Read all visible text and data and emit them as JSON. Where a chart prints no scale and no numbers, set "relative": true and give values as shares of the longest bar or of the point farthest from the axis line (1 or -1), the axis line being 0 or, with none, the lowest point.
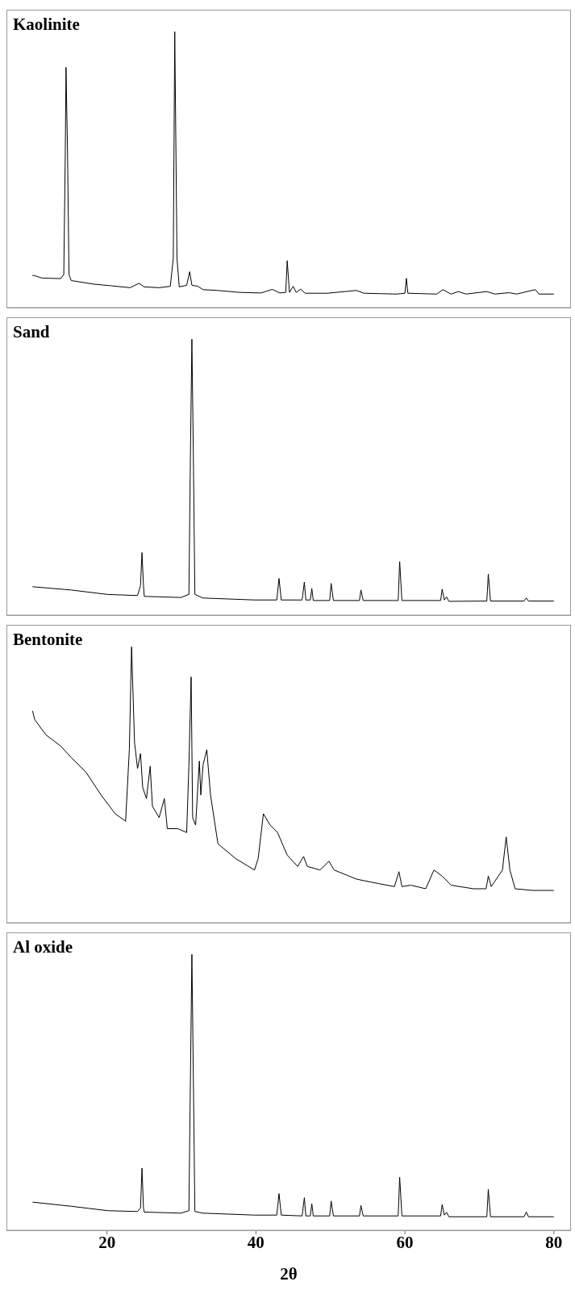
{
  "chart_data": [
    {
      "type": "line",
      "title": "Kaolinite",
      "relative": true,
      "xlim": [
        6.5,
        82.3
      ],
      "xticks": [
        20,
        40,
        60,
        80
      ],
      "tick_labels": false,
      "color": "#000000",
      "x": [
        10.0,
        10.1,
        11.3,
        13.8,
        14.2,
        14.4,
        14.5,
        14.7,
        14.9,
        15.2,
        18.2,
        20.6,
        23.1,
        24.3,
        25.0,
        27.0,
        28.5,
        28.9,
        29.1,
        29.4,
        29.7,
        30.7,
        31.1,
        31.4,
        32.2,
        32.9,
        34.9,
        37.8,
        40.7,
        42.2,
        43.2,
        44.0,
        44.2,
        44.5,
        45.0,
        45.4,
        46.0,
        46.6,
        49.6,
        53.5,
        54.5,
        58.9,
        60.0,
        60.2,
        60.4,
        64.3,
        65.1,
        66.2,
        67.2,
        68.2,
        71.0,
        72.1,
        74.0,
        75.0,
        77.5,
        78.0,
        80.0
      ],
      "values": [
        0.114,
        0.117,
        0.107,
        0.105,
        0.12,
        0.565,
        0.871,
        0.565,
        0.12,
        0.098,
        0.085,
        0.079,
        0.072,
        0.088,
        0.075,
        0.072,
        0.077,
        0.178,
        1.0,
        0.178,
        0.075,
        0.081,
        0.13,
        0.081,
        0.077,
        0.065,
        0.062,
        0.055,
        0.053,
        0.066,
        0.053,
        0.055,
        0.17,
        0.055,
        0.077,
        0.055,
        0.067,
        0.052,
        0.052,
        0.062,
        0.052,
        0.049,
        0.052,
        0.106,
        0.052,
        0.049,
        0.065,
        0.049,
        0.058,
        0.049,
        0.058,
        0.049,
        0.054,
        0.049,
        0.065,
        0.049,
        0.049
      ]
    },
    {
      "type": "line",
      "title": "Sand",
      "relative": true,
      "xlim": [
        6.5,
        82.3
      ],
      "xticks": [
        20,
        40,
        60,
        80
      ],
      "tick_labels": false,
      "color": "#000000",
      "x": [
        10.0,
        15.2,
        20.1,
        24.1,
        24.5,
        24.7,
        24.9,
        25.0,
        29.9,
        31.0,
        31.2,
        31.4,
        31.6,
        31.8,
        32.9,
        39.8,
        42.8,
        43.1,
        43.4,
        46.2,
        46.5,
        46.7,
        47.3,
        47.5,
        47.7,
        49.9,
        50.1,
        50.4,
        53.9,
        54.1,
        54.4,
        59.1,
        59.3,
        59.6,
        64.8,
        65.0,
        65.3,
        65.6,
        65.9,
        71.0,
        71.2,
        71.5,
        76.0,
        76.3,
        76.6,
        80.0
      ],
      "values": [
        0.103,
        0.091,
        0.075,
        0.071,
        0.107,
        0.227,
        0.107,
        0.068,
        0.064,
        0.075,
        0.57,
        1.0,
        0.57,
        0.075,
        0.062,
        0.055,
        0.055,
        0.133,
        0.055,
        0.055,
        0.12,
        0.055,
        0.055,
        0.097,
        0.053,
        0.053,
        0.115,
        0.053,
        0.053,
        0.091,
        0.053,
        0.053,
        0.194,
        0.053,
        0.053,
        0.094,
        0.055,
        0.066,
        0.05,
        0.051,
        0.149,
        0.051,
        0.051,
        0.062,
        0.051,
        0.051
      ]
    },
    {
      "type": "line",
      "title": "Bentonite",
      "relative": true,
      "xlim": [
        6.5,
        82.3
      ],
      "xticks": [
        20,
        40,
        60,
        80
      ],
      "tick_labels": false,
      "color": "#000000",
      "x": [
        10.0,
        10.3,
        11.8,
        13.8,
        15.2,
        17.2,
        19.2,
        21.1,
        22.5,
        23.0,
        23.3,
        23.7,
        24.1,
        24.5,
        24.8,
        25.3,
        25.8,
        26.1,
        27.0,
        27.7,
        28.1,
        29.5,
        30.7,
        31.0,
        31.3,
        31.5,
        31.9,
        32.4,
        32.6,
        32.9,
        33.4,
        33.9,
        34.9,
        37.3,
        39.8,
        40.3,
        41.0,
        41.9,
        42.9,
        44.2,
        45.6,
        46.4,
        46.9,
        48.6,
        49.8,
        50.5,
        53.5,
        56.4,
        58.6,
        59.2,
        59.6,
        60.8,
        62.8,
        63.9,
        65.0,
        66.2,
        69.2,
        70.9,
        71.2,
        71.6,
        73.1,
        73.6,
        74.1,
        74.8,
        77.1,
        80.0
      ],
      "values": [
        0.768,
        0.736,
        0.681,
        0.64,
        0.599,
        0.545,
        0.463,
        0.395,
        0.368,
        0.627,
        1.0,
        0.654,
        0.559,
        0.613,
        0.49,
        0.45,
        0.567,
        0.422,
        0.381,
        0.45,
        0.341,
        0.341,
        0.327,
        0.572,
        0.891,
        0.381,
        0.354,
        0.586,
        0.463,
        0.572,
        0.627,
        0.463,
        0.286,
        0.232,
        0.191,
        0.232,
        0.395,
        0.354,
        0.327,
        0.245,
        0.204,
        0.24,
        0.204,
        0.191,
        0.223,
        0.191,
        0.158,
        0.142,
        0.131,
        0.185,
        0.131,
        0.136,
        0.123,
        0.191,
        0.169,
        0.136,
        0.123,
        0.123,
        0.169,
        0.131,
        0.191,
        0.311,
        0.191,
        0.123,
        0.117,
        0.117
      ]
    },
    {
      "type": "line",
      "title": "Al oxide",
      "xlabel": "2θ",
      "relative": true,
      "xlim": [
        6.5,
        82.3
      ],
      "xticks": [
        20,
        40,
        60,
        80
      ],
      "tick_labels": "x",
      "color": "#000000",
      "x": [
        10.0,
        15.2,
        20.1,
        24.1,
        24.5,
        24.7,
        24.9,
        25.0,
        29.9,
        31.0,
        31.2,
        31.4,
        31.6,
        31.8,
        32.9,
        39.8,
        42.8,
        43.1,
        43.4,
        46.2,
        46.5,
        46.7,
        47.3,
        47.5,
        47.7,
        49.9,
        50.1,
        50.4,
        53.9,
        54.1,
        54.4,
        59.1,
        59.3,
        59.6,
        64.8,
        65.0,
        65.3,
        65.6,
        65.9,
        71.0,
        71.2,
        71.5,
        76.0,
        76.3,
        76.6,
        80.0
      ],
      "values": [
        0.102,
        0.087,
        0.071,
        0.068,
        0.081,
        0.225,
        0.081,
        0.066,
        0.062,
        0.071,
        0.544,
        1.0,
        0.544,
        0.068,
        0.062,
        0.055,
        0.055,
        0.133,
        0.055,
        0.052,
        0.118,
        0.052,
        0.052,
        0.096,
        0.052,
        0.052,
        0.106,
        0.052,
        0.052,
        0.09,
        0.052,
        0.052,
        0.192,
        0.052,
        0.052,
        0.093,
        0.055,
        0.065,
        0.049,
        0.049,
        0.148,
        0.049,
        0.049,
        0.066,
        0.049,
        0.049
      ]
    }
  ]
}
